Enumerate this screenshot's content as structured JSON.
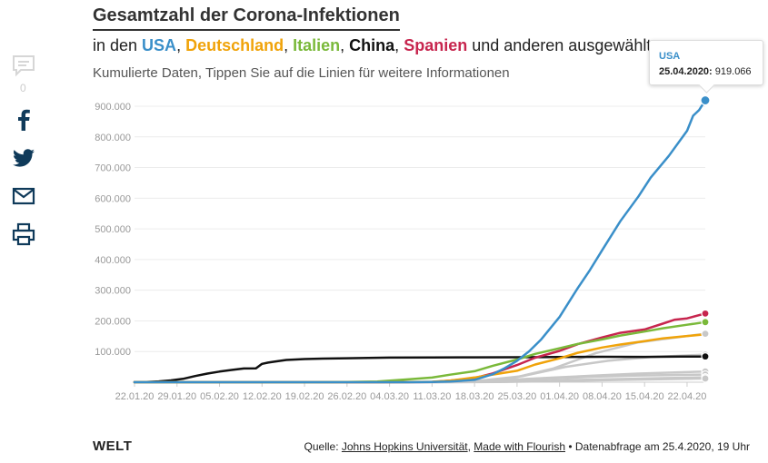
{
  "title": "Gesamtzahl der Corona-Infektionen",
  "subtitle": {
    "prefix": "in den ",
    "usa": "USA",
    "sep1": ", ",
    "de": "Deutschland",
    "sep2": ", ",
    "it": "Italien",
    "sep3": ", ",
    "cn": "China",
    "sep4": ", ",
    "es": "Spanien",
    "suffix": " und anderen ausgewählten"
  },
  "description": "Kumulierte Daten, Tippen Sie auf die Linien für weitere Informationen",
  "share": {
    "comment_count": "0",
    "icons": [
      "comment-icon",
      "facebook-icon",
      "twitter-icon",
      "mail-icon",
      "print-icon"
    ]
  },
  "tooltip": {
    "name": "USA",
    "date": "25.04.2020:",
    "value": "919.066"
  },
  "footer": {
    "logo": "WELT",
    "source_prefix": "Quelle: ",
    "link1": "Johns Hopkins Universität",
    "sep": ", ",
    "link2": "Made with Flourish",
    "suffix": " • Datenabfrage am 25.4.2020, 19 Uhr"
  },
  "chart_data": {
    "type": "line",
    "title": "Gesamtzahl der Corona-Infektionen",
    "xlabel": "",
    "ylabel": "",
    "ylim": [
      0,
      900000
    ],
    "yticks": [
      900000,
      800000,
      700000,
      600000,
      500000,
      400000,
      300000,
      200000,
      100000
    ],
    "ytick_labels": [
      "900.000",
      "800.000",
      "700.000",
      "600.000",
      "500.000",
      "400.000",
      "300.000",
      "200.000",
      "100.000"
    ],
    "xlim": [
      0,
      94
    ],
    "xticks": [
      0,
      7,
      14,
      21,
      28,
      35,
      42,
      49,
      56,
      63,
      70,
      77,
      84,
      91
    ],
    "xtick_labels": [
      "22.01.20",
      "29.01.20",
      "05.02.20",
      "12.02.20",
      "19.02.20",
      "26.02.20",
      "04.03.20",
      "11.03.20",
      "18.03.20",
      "25.03.20",
      "01.04.20",
      "08.04.20",
      "15.04.20",
      "22.04.20"
    ],
    "grid": true,
    "legend": "none",
    "colors": {
      "usa": "#3a8fc9",
      "de": "#f0a30a",
      "it": "#7ab93a",
      "cn": "#111111",
      "es": "#c7254e",
      "other": "#c8c8c8"
    },
    "series": [
      {
        "name": "",
        "color": "#c8c8c8",
        "end_marker": true,
        "x": [
          0,
          40,
          48,
          55,
          62,
          69,
          76,
          83,
          94
        ],
        "y": [
          0,
          0,
          100,
          2000,
          12000,
          45000,
          95000,
          130000,
          158000
        ]
      },
      {
        "name": "",
        "color": "#c8c8c8",
        "end_marker": true,
        "x": [
          0,
          40,
          50,
          57,
          64,
          71,
          78,
          85,
          94
        ],
        "y": [
          0,
          0,
          300,
          5000,
          20000,
          50000,
          70000,
          82000,
          90000
        ]
      },
      {
        "name": "",
        "color": "#c8c8c8",
        "end_marker": true,
        "x": [
          0,
          45,
          55,
          62,
          69,
          76,
          83,
          94
        ],
        "y": [
          0,
          0,
          2000,
          8000,
          15000,
          22000,
          28000,
          35000
        ]
      },
      {
        "name": "",
        "color": "#c8c8c8",
        "end_marker": true,
        "x": [
          0,
          45,
          55,
          62,
          69,
          76,
          83,
          94
        ],
        "y": [
          0,
          0,
          1500,
          6000,
          12000,
          18000,
          22000,
          25000
        ]
      },
      {
        "name": "",
        "color": "#c8c8c8",
        "end_marker": true,
        "x": [
          0,
          50,
          58,
          65,
          72,
          79,
          86,
          94
        ],
        "y": [
          0,
          0,
          1000,
          3000,
          7000,
          10000,
          13000,
          16000
        ]
      },
      {
        "name": "",
        "color": "#c8c8c8",
        "end_marker": true,
        "x": [
          0,
          50,
          60,
          68,
          76,
          84,
          94
        ],
        "y": [
          0,
          0,
          1000,
          3000,
          6000,
          9000,
          12000
        ]
      },
      {
        "name": "China",
        "color": "#111111",
        "end_marker": true,
        "x": [
          0,
          2,
          4,
          6,
          8,
          10,
          12,
          14,
          16,
          18,
          20,
          21,
          22,
          23,
          25,
          28,
          31,
          35,
          42,
          49,
          56,
          63,
          70,
          77,
          84,
          90,
          94
        ],
        "y": [
          500,
          1000,
          2800,
          6000,
          11000,
          20000,
          28000,
          34500,
          40000,
          44600,
          45000,
          59800,
          64000,
          67000,
          72500,
          75600,
          76900,
          78100,
          80300,
          80900,
          81100,
          81400,
          82300,
          82800,
          82700,
          83900,
          83900
        ]
      },
      {
        "name": "Spanien",
        "color": "#c7254e",
        "end_marker": true,
        "x": [
          0,
          40,
          45,
          49,
          52,
          56,
          59,
          63,
          66,
          70,
          73,
          77,
          80,
          84,
          87,
          89,
          91,
          94
        ],
        "y": [
          0,
          0,
          200,
          1000,
          5000,
          13700,
          28600,
          56000,
          80000,
          102000,
          124000,
          146000,
          161000,
          172000,
          191000,
          204000,
          208000,
          224000
        ]
      },
      {
        "name": "Italien",
        "color": "#7ab93a",
        "end_marker": true,
        "x": [
          0,
          30,
          35,
          40,
          45,
          49,
          52,
          56,
          59,
          63,
          66,
          70,
          73,
          77,
          80,
          84,
          87,
          91,
          94
        ],
        "y": [
          0,
          0,
          500,
          2500,
          9100,
          15000,
          24700,
          35700,
          53600,
          74000,
          92400,
          110600,
          124600,
          139400,
          152300,
          165200,
          175900,
          187300,
          196000
        ]
      },
      {
        "name": "Deutschland",
        "color": "#f0a30a",
        "end_marker": false,
        "x": [
          0,
          40,
          45,
          49,
          52,
          56,
          59,
          63,
          66,
          70,
          73,
          77,
          80,
          84,
          87,
          91,
          94
        ],
        "y": [
          0,
          0,
          200,
          1500,
          5000,
          15300,
          24800,
          37300,
          57700,
          77900,
          96000,
          113000,
          123000,
          134000,
          143000,
          150600,
          156000
        ]
      },
      {
        "name": "USA",
        "color": "#3a8fc9",
        "end_marker": true,
        "x": [
          0,
          40,
          45,
          49,
          52,
          56,
          59,
          61,
          63,
          65,
          67,
          70,
          73,
          75,
          77,
          80,
          83,
          85,
          88,
          91,
          92,
          93,
          94
        ],
        "y": [
          0,
          0,
          100,
          1000,
          2000,
          7800,
          26000,
          46000,
          70000,
          101000,
          140000,
          213000,
          307000,
          366000,
          430000,
          525000,
          606000,
          667000,
          738000,
          820000,
          869000,
          888000,
          919066
        ]
      }
    ]
  }
}
